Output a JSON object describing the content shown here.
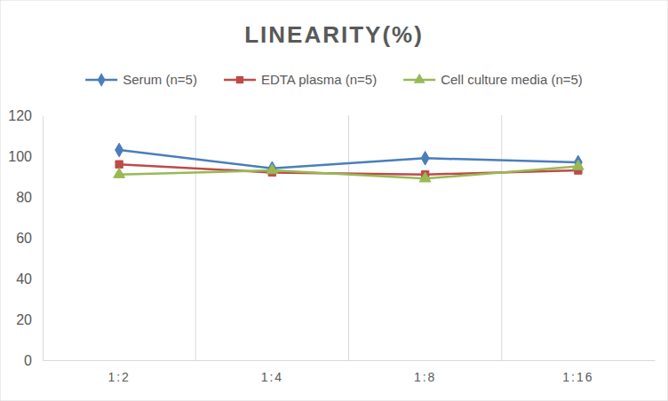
{
  "chart_data": {
    "type": "line",
    "title": "LINEARITY(%)",
    "categories": [
      "1:2",
      "1:4",
      "1:8",
      "1:16"
    ],
    "series": [
      {
        "name": "Serum (n=5)",
        "color": "#4a7ebb",
        "marker": "diamond",
        "values": [
          103,
          94,
          99,
          97
        ]
      },
      {
        "name": "EDTA plasma (n=5)",
        "color": "#be4b48",
        "marker": "square",
        "values": [
          96,
          92,
          91,
          93
        ]
      },
      {
        "name": "Cell culture media (n=5)",
        "color": "#98b954",
        "marker": "triangle",
        "values": [
          91,
          93,
          89,
          95
        ]
      }
    ],
    "ylim": [
      0,
      120
    ],
    "yticks": [
      0,
      20,
      40,
      60,
      80,
      100,
      120
    ],
    "grid": true,
    "legend": "top"
  }
}
